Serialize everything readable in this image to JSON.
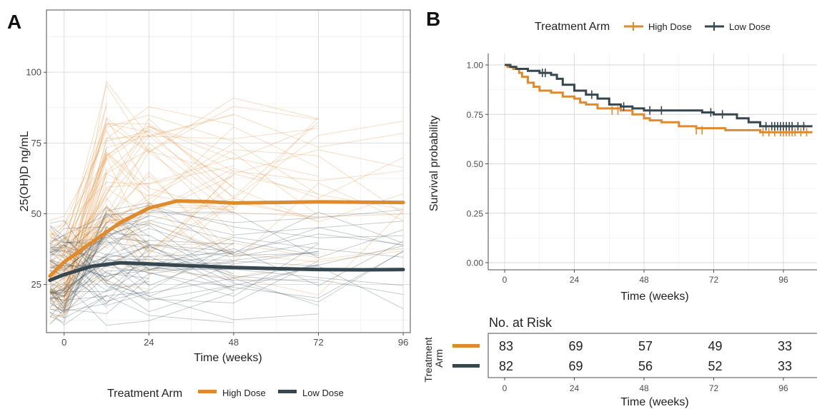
{
  "panels": {
    "a_letter": "A",
    "b_letter": "B"
  },
  "colors": {
    "high_dose": "#E08A2E",
    "low_dose": "#37474F",
    "grid": "#D9D9D9",
    "panel_border": "#4d4d4d"
  },
  "chart_data": [
    {
      "type": "line",
      "panel": "A",
      "xlabel": "Time (weeks)",
      "ylabel": "25(OH)D ng/mL",
      "x_ticks": [
        0,
        24,
        48,
        72,
        96
      ],
      "y_ticks": [
        25,
        50,
        75,
        100
      ],
      "xlim": [
        -5,
        98
      ],
      "ylim": [
        8,
        122
      ],
      "legend": {
        "title": "Treatment Arm",
        "position": "bottom",
        "entries": [
          "High Dose",
          "Low Dose"
        ]
      },
      "series": [
        {
          "name": "High Dose",
          "color": "#E08A2E",
          "x": [
            -4,
            0,
            8,
            16,
            24,
            32,
            40,
            48,
            60,
            72,
            84,
            96
          ],
          "y": [
            28,
            33,
            40,
            47,
            52,
            54.5,
            54.3,
            53.8,
            54,
            54.2,
            54.1,
            54
          ]
        },
        {
          "name": "Low Dose",
          "color": "#37474F",
          "x": [
            -4,
            0,
            8,
            16,
            24,
            32,
            48,
            60,
            72,
            84,
            96
          ],
          "y": [
            26.5,
            28.5,
            31.5,
            32.7,
            32.3,
            31.8,
            31,
            30.6,
            30.3,
            30.2,
            30.3
          ]
        }
      ],
      "individual_trajectories": "faint per-participant lines in arm colors"
    },
    {
      "type": "line",
      "subtype": "kaplan-meier",
      "panel": "B",
      "xlabel": "Time (weeks)",
      "ylabel": "Survival probability",
      "x_ticks": [
        0,
        24,
        48,
        72,
        96
      ],
      "y_ticks": [
        "0.00",
        "0.25",
        "0.50",
        "0.75",
        "1.00"
      ],
      "xlim": [
        -5,
        106
      ],
      "ylim": [
        -0.05,
        1.05
      ],
      "legend": {
        "title": "Treatment Arm",
        "position": "top",
        "entries": [
          "High Dose",
          "Low Dose"
        ]
      },
      "series": [
        {
          "name": "High Dose",
          "color": "#E08A2E",
          "x": [
            0,
            1,
            3,
            5,
            6,
            8,
            10,
            12,
            16,
            20,
            24,
            26,
            28,
            32,
            40,
            44,
            48,
            50,
            54,
            60,
            66,
            76,
            88,
            96,
            106
          ],
          "y": [
            1.0,
            0.99,
            0.98,
            0.96,
            0.94,
            0.91,
            0.89,
            0.87,
            0.86,
            0.84,
            0.83,
            0.81,
            0.8,
            0.78,
            0.77,
            0.75,
            0.73,
            0.72,
            0.71,
            0.69,
            0.68,
            0.67,
            0.66,
            0.66,
            0.66
          ]
        },
        {
          "name": "Low Dose",
          "color": "#37474F",
          "x": [
            0,
            2,
            4,
            8,
            12,
            16,
            18,
            20,
            24,
            28,
            32,
            36,
            40,
            44,
            48,
            56,
            68,
            72,
            80,
            84,
            88,
            96,
            106
          ],
          "y": [
            1.0,
            0.99,
            0.98,
            0.97,
            0.96,
            0.95,
            0.93,
            0.9,
            0.87,
            0.85,
            0.83,
            0.8,
            0.79,
            0.78,
            0.77,
            0.77,
            0.76,
            0.75,
            0.73,
            0.71,
            0.69,
            0.69,
            0.69
          ]
        }
      ],
      "risk_table": {
        "title": "No. at Risk",
        "row_label": "Treatment Arm",
        "times": [
          0,
          24,
          48,
          72,
          96
        ],
        "rows": [
          {
            "name": "High Dose",
            "counts": [
              83,
              69,
              57,
              49,
              33
            ]
          },
          {
            "name": "Low Dose",
            "counts": [
              82,
              69,
              56,
              52,
              33
            ]
          }
        ],
        "xlabel": "Time (weeks)"
      }
    }
  ]
}
